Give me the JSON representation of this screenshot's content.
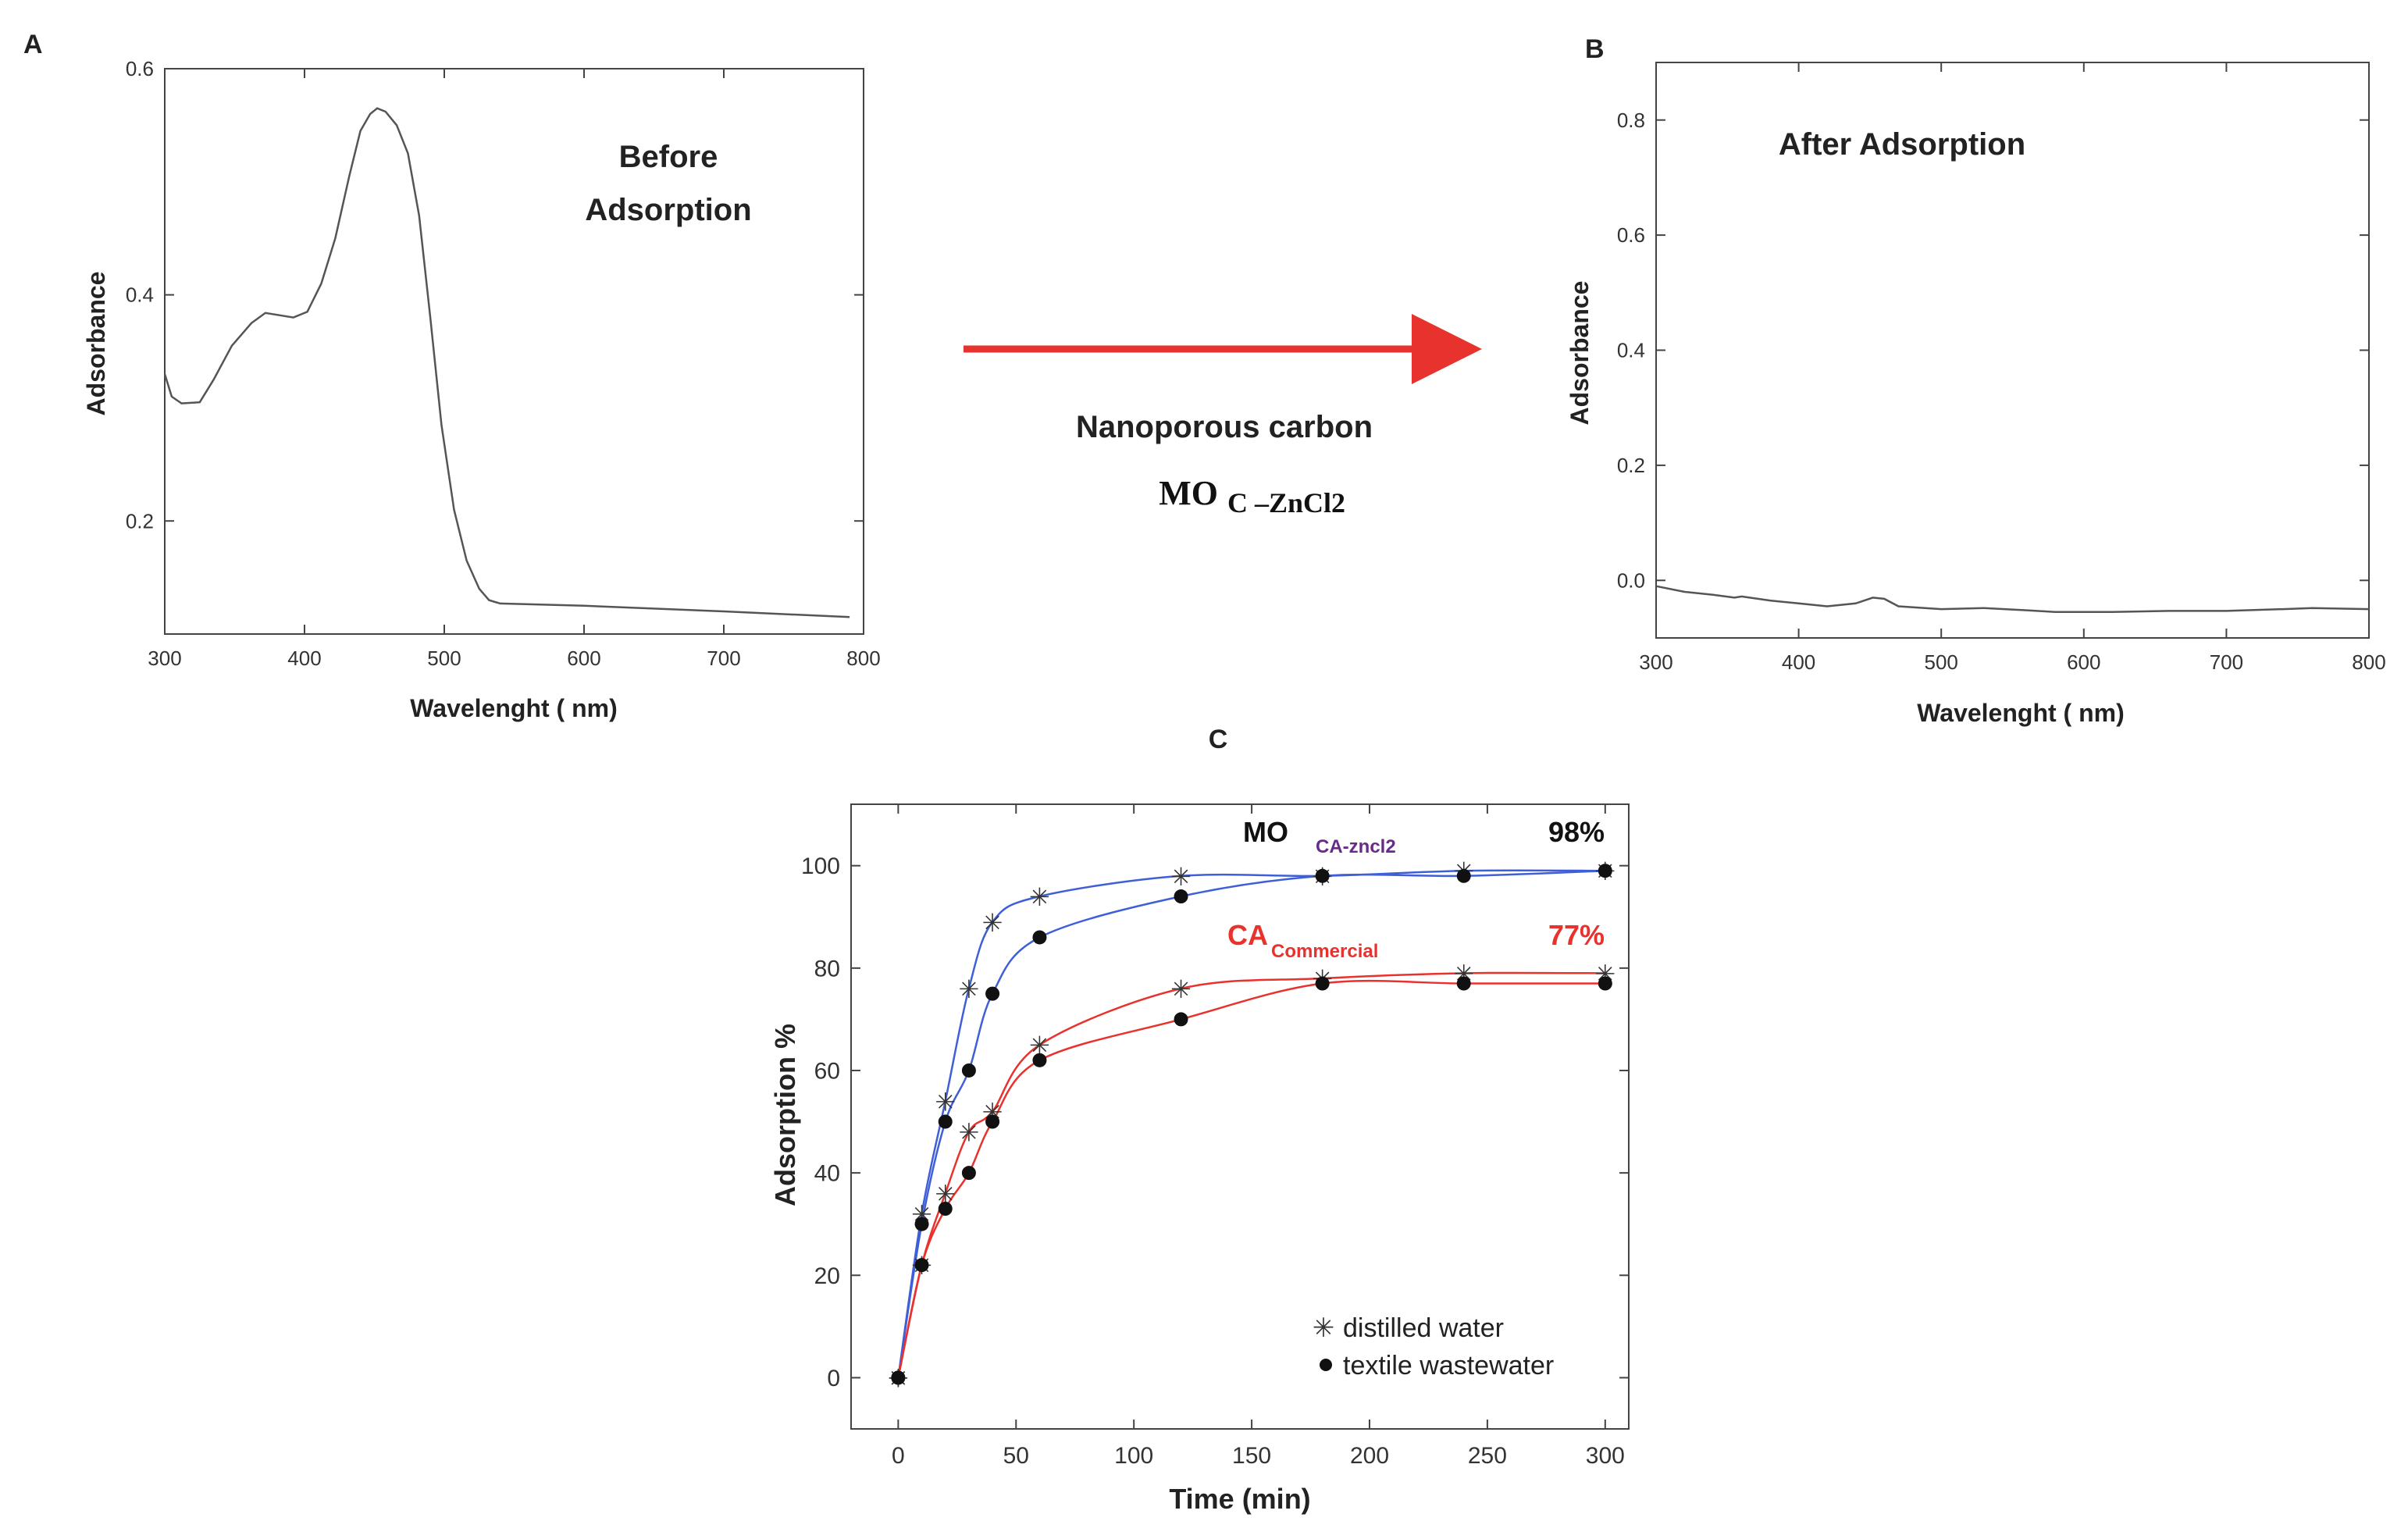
{
  "arrow_label": {
    "line1": "Nanoporous carbon",
    "mo": "MO",
    "sub": "C –ZnCl2"
  },
  "chart_data": [
    {
      "id": "A",
      "panel_label": "A",
      "type": "line",
      "title": "Before Adsorption",
      "title_lines": [
        "Before",
        "Adsorption"
      ],
      "xlabel": "Wavelenght ( nm)",
      "ylabel": "Adsorbance",
      "xlim": [
        300,
        800
      ],
      "ylim": [
        0.1,
        0.6
      ],
      "xticks": [
        300,
        400,
        500,
        600,
        700,
        800
      ],
      "yticks": [
        0.2,
        0.4,
        0.6
      ],
      "ytick_labels": [
        "0.2",
        "0.4",
        "0.6"
      ],
      "series": [
        {
          "name": "Before Adsorption",
          "color": "#555555",
          "points": [
            [
              300,
              0.33
            ],
            [
              305,
              0.31
            ],
            [
              312,
              0.304
            ],
            [
              325,
              0.305
            ],
            [
              335,
              0.325
            ],
            [
              348,
              0.355
            ],
            [
              362,
              0.375
            ],
            [
              372,
              0.384
            ],
            [
              382,
              0.382
            ],
            [
              392,
              0.38
            ],
            [
              402,
              0.385
            ],
            [
              412,
              0.41
            ],
            [
              422,
              0.45
            ],
            [
              432,
              0.505
            ],
            [
              440,
              0.545
            ],
            [
              447,
              0.56
            ],
            [
              452,
              0.565
            ],
            [
              458,
              0.562
            ],
            [
              466,
              0.55
            ],
            [
              474,
              0.525
            ],
            [
              482,
              0.47
            ],
            [
              490,
              0.38
            ],
            [
              498,
              0.285
            ],
            [
              507,
              0.21
            ],
            [
              516,
              0.165
            ],
            [
              525,
              0.14
            ],
            [
              532,
              0.13
            ],
            [
              540,
              0.127
            ],
            [
              600,
              0.125
            ],
            [
              700,
              0.12
            ],
            [
              790,
              0.115
            ]
          ]
        }
      ]
    },
    {
      "id": "B",
      "panel_label": "B",
      "type": "line",
      "title": "After Adsorption",
      "xlabel": "Wavelenght ( nm)",
      "ylabel": "Adsorbance",
      "xlim": [
        300,
        800
      ],
      "ylim": [
        -0.1,
        0.9
      ],
      "xticks": [
        300,
        400,
        500,
        600,
        700,
        800
      ],
      "yticks": [
        0.0,
        0.2,
        0.4,
        0.6,
        0.8
      ],
      "ytick_labels": [
        "0.0",
        "0.2",
        "0.4",
        "0.6",
        "0.8"
      ],
      "series": [
        {
          "name": "After Adsorption",
          "color": "#555555",
          "points": [
            [
              300,
              -0.01
            ],
            [
              320,
              -0.02
            ],
            [
              340,
              -0.025
            ],
            [
              355,
              -0.03
            ],
            [
              360,
              -0.028
            ],
            [
              380,
              -0.035
            ],
            [
              400,
              -0.04
            ],
            [
              420,
              -0.045
            ],
            [
              440,
              -0.04
            ],
            [
              452,
              -0.03
            ],
            [
              460,
              -0.032
            ],
            [
              470,
              -0.045
            ],
            [
              500,
              -0.05
            ],
            [
              530,
              -0.048
            ],
            [
              560,
              -0.052
            ],
            [
              580,
              -0.055
            ],
            [
              620,
              -0.055
            ],
            [
              660,
              -0.053
            ],
            [
              700,
              -0.053
            ],
            [
              740,
              -0.05
            ],
            [
              760,
              -0.048
            ],
            [
              800,
              -0.05
            ]
          ]
        }
      ]
    },
    {
      "id": "C",
      "panel_label": "C",
      "type": "scatter",
      "xlabel": "Time (min)",
      "ylabel": "Adsorption %",
      "xlim": [
        -20,
        310
      ],
      "ylim": [
        -10,
        112
      ],
      "xticks": [
        0,
        50,
        100,
        150,
        200,
        250,
        300
      ],
      "yticks": [
        0,
        20,
        40,
        60,
        80,
        100
      ],
      "annotations": {
        "mo_main": "MO",
        "mo_sub": "CA-zncl2",
        "mo_pct": "98%",
        "ca_main": "CA",
        "ca_sub": "Commercial",
        "ca_pct": "77%"
      },
      "legend": {
        "placement": "bottom-right",
        "entries": [
          "distilled water",
          "textile wastewater"
        ]
      },
      "series": [
        {
          "name": "MO distilled water",
          "color": "#3f5fd8",
          "marker": "star",
          "x": [
            0,
            10,
            20,
            30,
            40,
            60,
            120,
            180,
            240,
            300
          ],
          "y": [
            0,
            32,
            54,
            76,
            89,
            94,
            98,
            98,
            99,
            99
          ]
        },
        {
          "name": "MO textile wastewater",
          "color": "#3f5fd8",
          "marker": "dot",
          "x": [
            0,
            10,
            20,
            30,
            40,
            60,
            120,
            180,
            240,
            300
          ],
          "y": [
            0,
            30,
            50,
            60,
            75,
            86,
            94,
            98,
            98,
            99
          ]
        },
        {
          "name": "CA distilled water",
          "color": "#e8322e",
          "marker": "star",
          "x": [
            0,
            10,
            20,
            30,
            40,
            60,
            120,
            180,
            240,
            300
          ],
          "y": [
            0,
            22,
            36,
            48,
            52,
            65,
            76,
            78,
            79,
            79
          ]
        },
        {
          "name": "CA textile wastewater",
          "color": "#e8322e",
          "marker": "dot",
          "x": [
            0,
            10,
            20,
            30,
            40,
            60,
            120,
            180,
            240,
            300
          ],
          "y": [
            0,
            22,
            33,
            40,
            50,
            62,
            70,
            77,
            77,
            77
          ]
        }
      ]
    }
  ]
}
